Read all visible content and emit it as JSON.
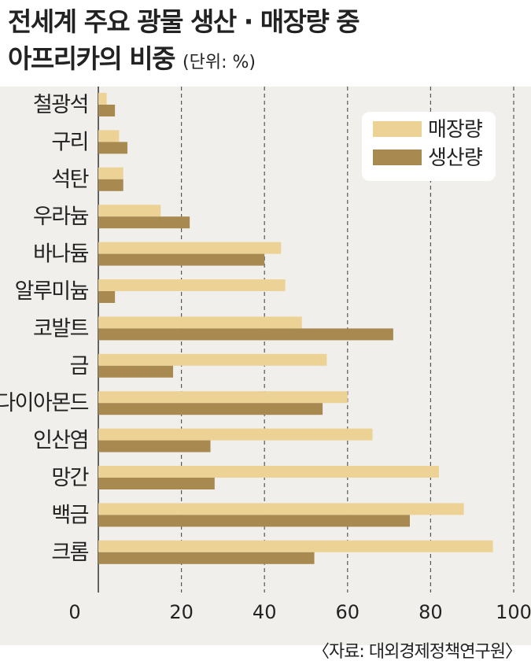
{
  "title": {
    "line1": "전세계 주요 광물 생산 · 매장량 중",
    "line2": "아프리카의 비중",
    "unit": "(단위: %)"
  },
  "source": "〈자료: 대외경제정책연구원〉",
  "colors": {
    "reserves": "#ecd295",
    "production": "#a88a50",
    "panel": "#f1efeb"
  },
  "chart_data": {
    "type": "bar",
    "orientation": "horizontal",
    "categories": [
      "철광석",
      "구리",
      "석탄",
      "우라늄",
      "바나듐",
      "알루미늄",
      "코발트",
      "금",
      "다이아몬드",
      "인산염",
      "망간",
      "백금",
      "크롬"
    ],
    "series": [
      {
        "name": "매장량",
        "values": [
          2,
          5,
          6,
          15,
          44,
          45,
          49,
          55,
          60,
          66,
          82,
          88,
          95
        ]
      },
      {
        "name": "생산량",
        "values": [
          4,
          7,
          6,
          22,
          40,
          4,
          71,
          18,
          54,
          27,
          28,
          75,
          52
        ]
      }
    ],
    "xlim": [
      0,
      100
    ],
    "xticks": [
      0,
      20,
      40,
      60,
      80,
      100
    ],
    "grid": "vertical dashed",
    "legend": "top-right"
  }
}
